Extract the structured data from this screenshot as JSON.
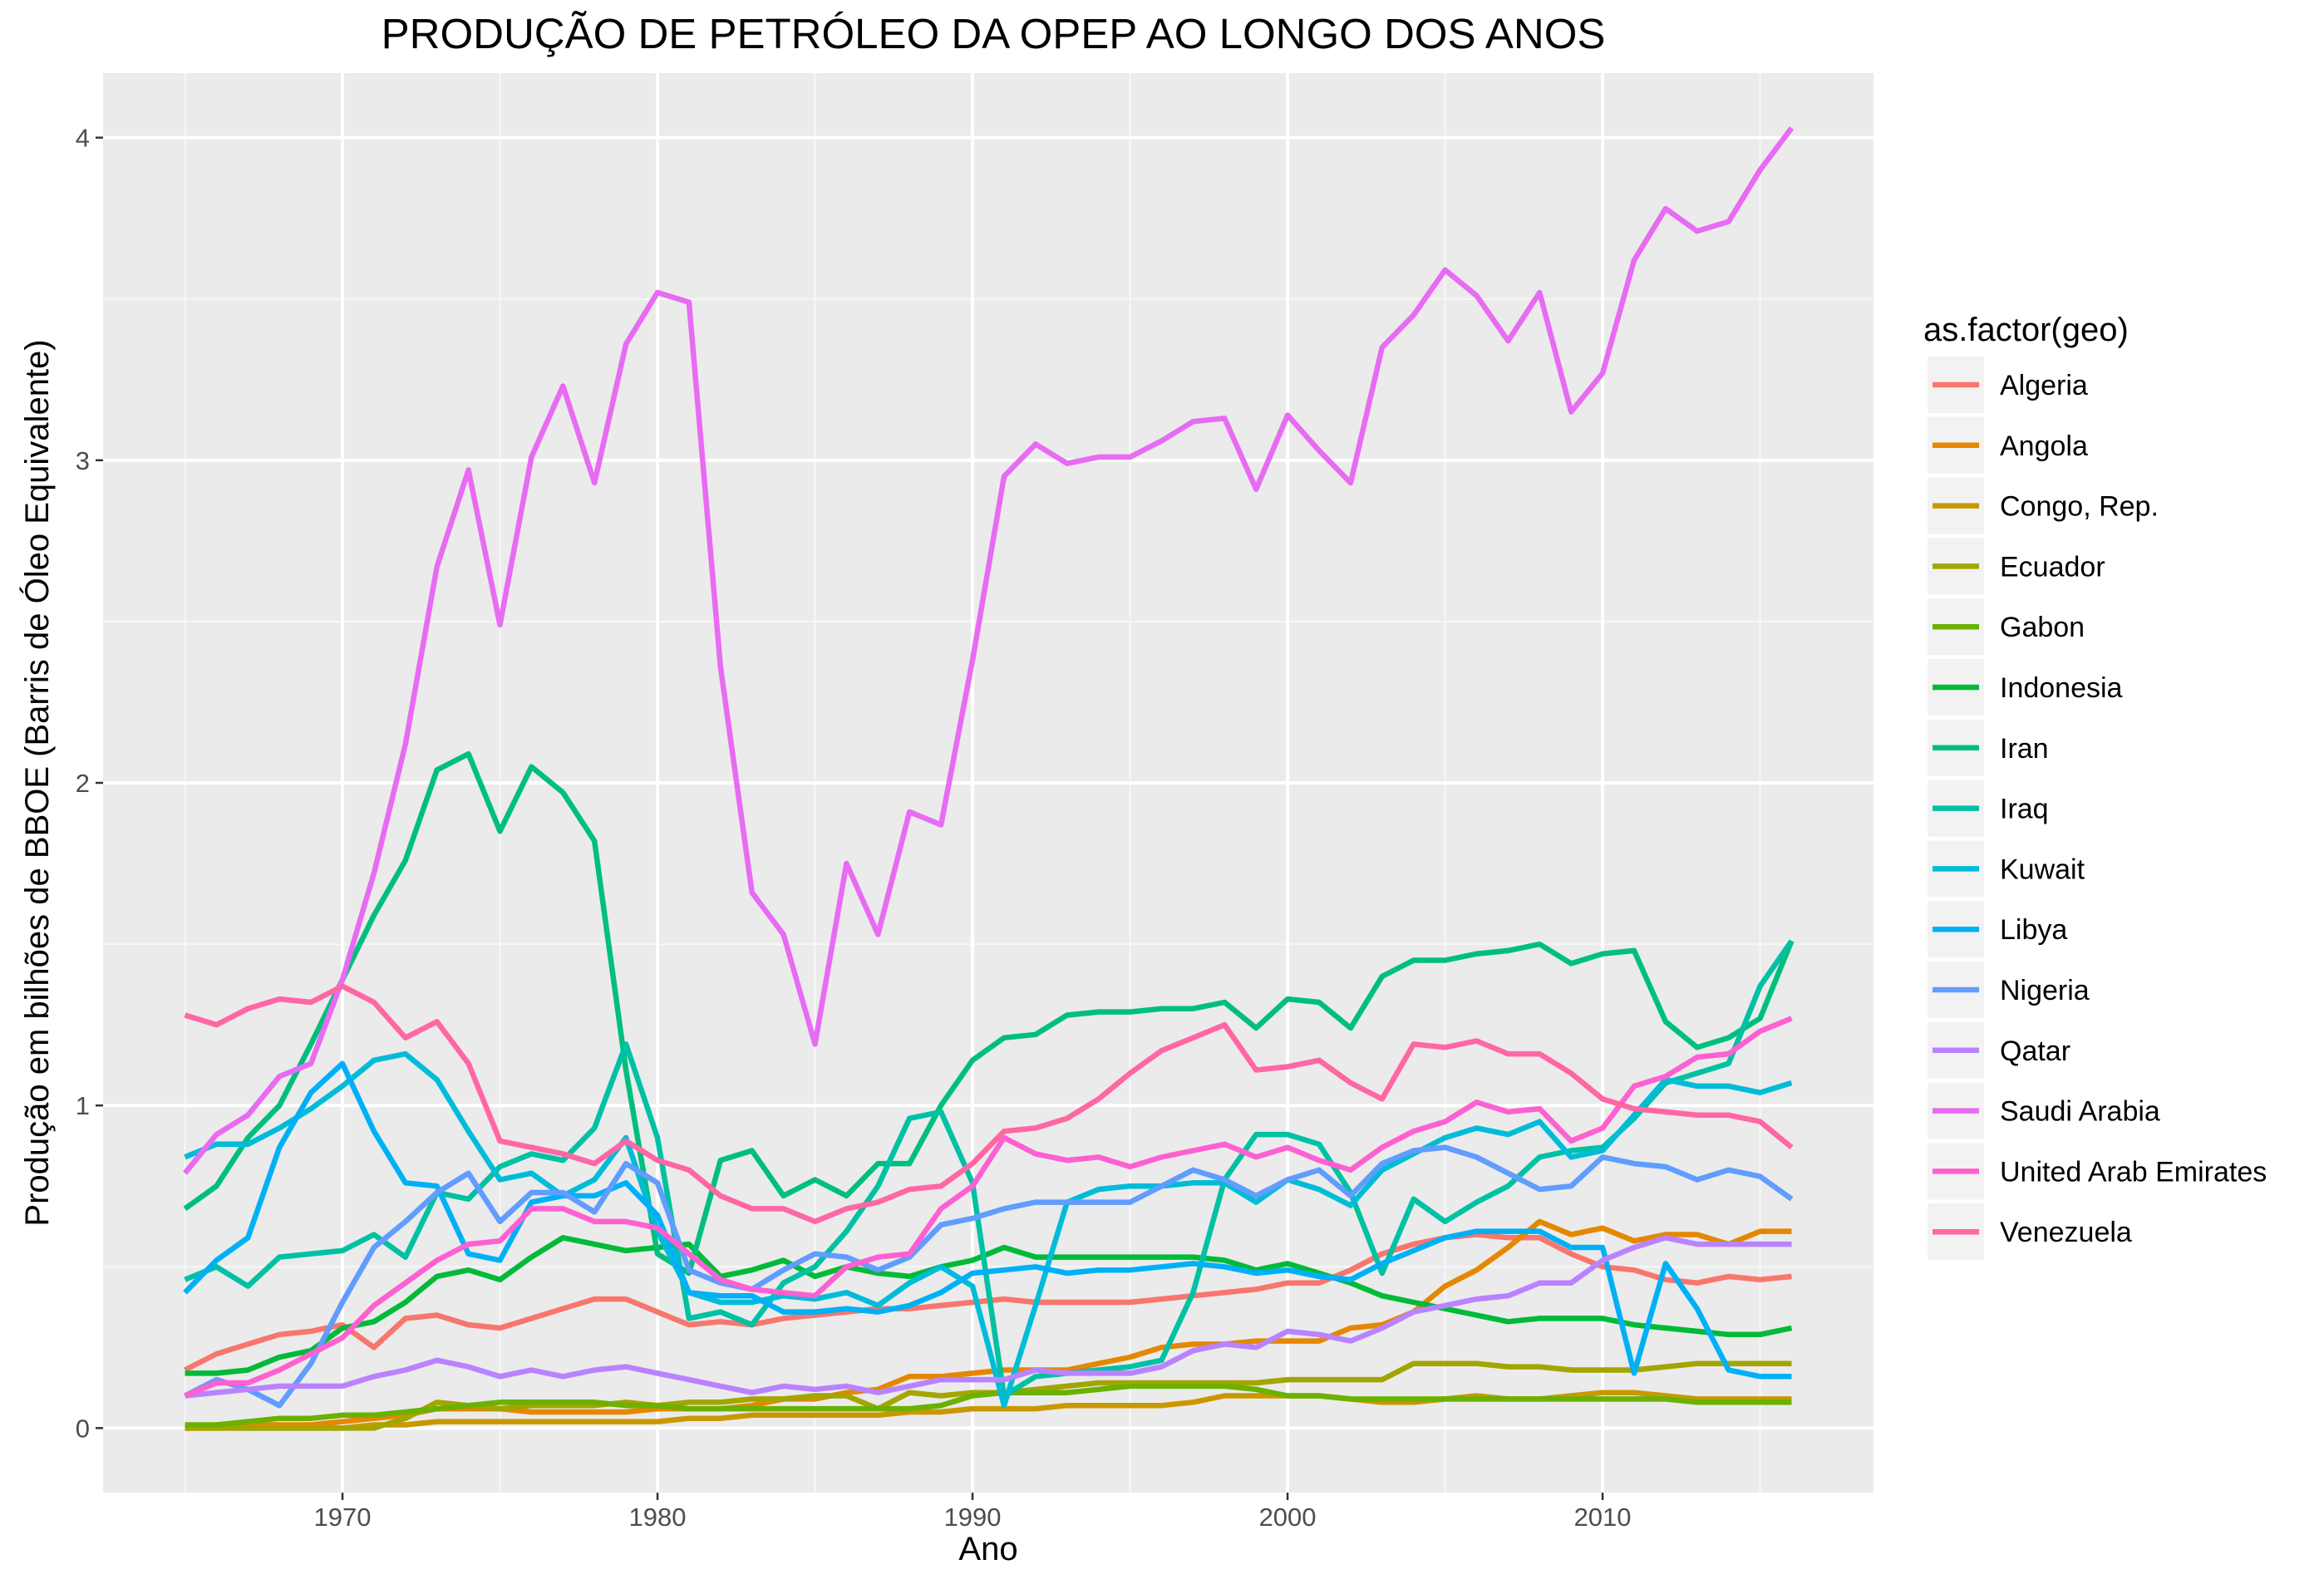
{
  "chart_data": {
    "type": "line",
    "title": "PRODUÇÃO DE PETRÓLEO DA OPEP AO LONGO DOS ANOS",
    "xlabel": "Ano",
    "ylabel": "Produção em bilhões de BBOE (Barris de Óleo Equivalente)",
    "xlim": [
      1962.4,
      2018.6
    ],
    "ylim": [
      -0.2,
      4.2
    ],
    "x_ticks": [
      1970,
      1980,
      1990,
      2000,
      2010
    ],
    "y_ticks": [
      0,
      1,
      2,
      3,
      4
    ],
    "grid": true,
    "legend": {
      "title": "as.factor(geo)",
      "position": "right"
    },
    "x": [
      1965,
      1966,
      1967,
      1968,
      1969,
      1970,
      1971,
      1972,
      1973,
      1974,
      1975,
      1976,
      1977,
      1978,
      1979,
      1980,
      1981,
      1982,
      1983,
      1984,
      1985,
      1986,
      1987,
      1988,
      1989,
      1990,
      1991,
      1992,
      1993,
      1994,
      1995,
      1996,
      1997,
      1998,
      1999,
      2000,
      2001,
      2002,
      2003,
      2004,
      2005,
      2006,
      2007,
      2008,
      2009,
      2010,
      2011,
      2012,
      2013,
      2014,
      2015,
      2016
    ],
    "series": [
      {
        "name": "Algeria",
        "color": "#F8766D",
        "values": [
          0.18,
          0.23,
          0.26,
          0.29,
          0.3,
          0.32,
          0.25,
          0.34,
          0.35,
          0.32,
          0.31,
          0.34,
          0.37,
          0.4,
          0.4,
          0.36,
          0.32,
          0.33,
          0.32,
          0.34,
          0.35,
          0.36,
          0.37,
          0.37,
          0.38,
          0.39,
          0.4,
          0.39,
          0.39,
          0.39,
          0.39,
          0.4,
          0.41,
          0.42,
          0.43,
          0.45,
          0.45,
          0.49,
          0.54,
          0.57,
          0.59,
          0.6,
          0.59,
          0.59,
          0.54,
          0.5,
          0.49,
          0.46,
          0.45,
          0.47,
          0.46,
          0.47
        ]
      },
      {
        "name": "Angola",
        "color": "#E58700",
        "values": [
          0.0,
          0.0,
          0.01,
          0.01,
          0.01,
          0.02,
          0.03,
          0.04,
          0.06,
          0.06,
          0.06,
          0.05,
          0.05,
          0.05,
          0.05,
          0.06,
          0.06,
          0.06,
          0.07,
          0.09,
          0.09,
          0.11,
          0.12,
          0.16,
          0.16,
          0.17,
          0.18,
          0.18,
          0.18,
          0.2,
          0.22,
          0.25,
          0.26,
          0.26,
          0.27,
          0.27,
          0.27,
          0.31,
          0.32,
          0.36,
          0.44,
          0.49,
          0.56,
          0.64,
          0.6,
          0.62,
          0.58,
          0.6,
          0.6,
          0.57,
          0.61,
          0.61
        ]
      },
      {
        "name": "Congo, Rep.",
        "color": "#C99800",
        "values": [
          0.0,
          0.0,
          0.0,
          0.0,
          0.0,
          0.0,
          0.01,
          0.01,
          0.02,
          0.02,
          0.02,
          0.02,
          0.02,
          0.02,
          0.02,
          0.02,
          0.03,
          0.03,
          0.04,
          0.04,
          0.04,
          0.04,
          0.04,
          0.05,
          0.05,
          0.06,
          0.06,
          0.06,
          0.07,
          0.07,
          0.07,
          0.07,
          0.08,
          0.1,
          0.1,
          0.1,
          0.1,
          0.09,
          0.08,
          0.08,
          0.09,
          0.1,
          0.09,
          0.09,
          0.1,
          0.11,
          0.11,
          0.1,
          0.09,
          0.09,
          0.09,
          0.09
        ]
      },
      {
        "name": "Ecuador",
        "color": "#A3A500",
        "values": [
          0.0,
          0.0,
          0.0,
          0.0,
          0.0,
          0.0,
          0.0,
          0.03,
          0.08,
          0.07,
          0.06,
          0.07,
          0.07,
          0.07,
          0.08,
          0.07,
          0.08,
          0.08,
          0.09,
          0.09,
          0.1,
          0.1,
          0.06,
          0.11,
          0.1,
          0.11,
          0.11,
          0.12,
          0.13,
          0.14,
          0.14,
          0.14,
          0.14,
          0.14,
          0.14,
          0.15,
          0.15,
          0.15,
          0.15,
          0.2,
          0.2,
          0.2,
          0.19,
          0.19,
          0.18,
          0.18,
          0.18,
          0.19,
          0.2,
          0.2,
          0.2,
          0.2
        ]
      },
      {
        "name": "Gabon",
        "color": "#6BB100",
        "values": [
          0.01,
          0.01,
          0.02,
          0.03,
          0.03,
          0.04,
          0.04,
          0.05,
          0.06,
          0.07,
          0.08,
          0.08,
          0.08,
          0.08,
          0.07,
          0.07,
          0.06,
          0.06,
          0.06,
          0.06,
          0.06,
          0.06,
          0.06,
          0.06,
          0.07,
          0.1,
          0.11,
          0.11,
          0.11,
          0.12,
          0.13,
          0.13,
          0.13,
          0.13,
          0.12,
          0.1,
          0.1,
          0.09,
          0.09,
          0.09,
          0.09,
          0.09,
          0.09,
          0.09,
          0.09,
          0.09,
          0.09,
          0.09,
          0.08,
          0.08,
          0.08,
          0.08
        ]
      },
      {
        "name": "Indonesia",
        "color": "#00BA38",
        "values": [
          0.17,
          0.17,
          0.18,
          0.22,
          0.24,
          0.31,
          0.33,
          0.39,
          0.47,
          0.49,
          0.46,
          0.53,
          0.59,
          0.57,
          0.55,
          0.56,
          0.57,
          0.47,
          0.49,
          0.52,
          0.47,
          0.5,
          0.48,
          0.47,
          0.5,
          0.52,
          0.56,
          0.53,
          0.53,
          0.53,
          0.53,
          0.53,
          0.53,
          0.52,
          0.49,
          0.51,
          0.48,
          0.45,
          0.41,
          0.39,
          0.37,
          0.35,
          0.33,
          0.34,
          0.34,
          0.34,
          0.32,
          0.31,
          0.3,
          0.29,
          0.29,
          0.31
        ]
      },
      {
        "name": "Iran",
        "color": "#00BF7D",
        "values": [
          0.68,
          0.75,
          0.9,
          1.0,
          1.19,
          1.39,
          1.59,
          1.76,
          2.04,
          2.09,
          1.85,
          2.05,
          1.97,
          1.82,
          1.11,
          0.54,
          0.48,
          0.83,
          0.86,
          0.72,
          0.77,
          0.72,
          0.82,
          0.82,
          1.0,
          1.14,
          1.21,
          1.22,
          1.28,
          1.29,
          1.29,
          1.3,
          1.3,
          1.32,
          1.24,
          1.33,
          1.32,
          1.24,
          1.4,
          1.45,
          1.45,
          1.47,
          1.48,
          1.5,
          1.44,
          1.47,
          1.48,
          1.26,
          1.18,
          1.21,
          1.27,
          1.51
        ]
      },
      {
        "name": "Iraq",
        "color": "#00C1A3",
        "values": [
          0.46,
          0.5,
          0.44,
          0.53,
          0.54,
          0.55,
          0.6,
          0.53,
          0.73,
          0.71,
          0.81,
          0.85,
          0.83,
          0.93,
          1.19,
          0.9,
          0.34,
          0.36,
          0.32,
          0.45,
          0.5,
          0.61,
          0.75,
          0.96,
          0.98,
          0.76,
          0.1,
          0.16,
          0.17,
          0.18,
          0.19,
          0.21,
          0.42,
          0.77,
          0.91,
          0.91,
          0.88,
          0.73,
          0.48,
          0.71,
          0.64,
          0.7,
          0.75,
          0.84,
          0.86,
          0.87,
          0.96,
          1.07,
          1.1,
          1.13,
          1.37,
          1.51
        ]
      },
      {
        "name": "Kuwait",
        "color": "#00BCD8",
        "values": [
          0.84,
          0.88,
          0.88,
          0.93,
          0.99,
          1.06,
          1.14,
          1.16,
          1.08,
          0.92,
          0.77,
          0.79,
          0.72,
          0.77,
          0.9,
          0.61,
          0.42,
          0.39,
          0.39,
          0.41,
          0.4,
          0.42,
          0.38,
          0.45,
          0.5,
          0.44,
          0.07,
          0.38,
          0.7,
          0.74,
          0.75,
          0.75,
          0.76,
          0.76,
          0.7,
          0.77,
          0.74,
          0.69,
          0.8,
          0.85,
          0.9,
          0.93,
          0.91,
          0.95,
          0.84,
          0.86,
          0.97,
          1.08,
          1.06,
          1.06,
          1.04,
          1.07
        ]
      },
      {
        "name": "Libya",
        "color": "#00B0F6",
        "values": [
          0.42,
          0.52,
          0.59,
          0.87,
          1.04,
          1.13,
          0.92,
          0.76,
          0.75,
          0.54,
          0.52,
          0.7,
          0.72,
          0.72,
          0.76,
          0.66,
          0.42,
          0.41,
          0.41,
          0.36,
          0.36,
          0.37,
          0.36,
          0.38,
          0.42,
          0.48,
          0.49,
          0.5,
          0.48,
          0.49,
          0.49,
          0.5,
          0.51,
          0.5,
          0.48,
          0.49,
          0.47,
          0.46,
          0.51,
          0.55,
          0.59,
          0.61,
          0.61,
          0.61,
          0.56,
          0.56,
          0.17,
          0.51,
          0.37,
          0.18,
          0.16,
          0.16
        ]
      },
      {
        "name": "Nigeria",
        "color": "#619CFF",
        "values": [
          0.1,
          0.15,
          0.12,
          0.07,
          0.2,
          0.39,
          0.56,
          0.64,
          0.73,
          0.79,
          0.64,
          0.73,
          0.73,
          0.67,
          0.82,
          0.76,
          0.49,
          0.45,
          0.43,
          0.49,
          0.54,
          0.53,
          0.49,
          0.53,
          0.63,
          0.65,
          0.68,
          0.7,
          0.7,
          0.7,
          0.7,
          0.75,
          0.8,
          0.77,
          0.72,
          0.77,
          0.8,
          0.72,
          0.82,
          0.86,
          0.87,
          0.84,
          0.79,
          0.74,
          0.75,
          0.84,
          0.82,
          0.81,
          0.77,
          0.8,
          0.78,
          0.71
        ]
      },
      {
        "name": "Qatar",
        "color": "#B983FF",
        "values": [
          0.1,
          0.11,
          0.12,
          0.13,
          0.13,
          0.13,
          0.16,
          0.18,
          0.21,
          0.19,
          0.16,
          0.18,
          0.16,
          0.18,
          0.19,
          0.17,
          0.15,
          0.13,
          0.11,
          0.13,
          0.12,
          0.13,
          0.11,
          0.13,
          0.15,
          0.15,
          0.15,
          0.18,
          0.17,
          0.17,
          0.17,
          0.19,
          0.24,
          0.26,
          0.25,
          0.3,
          0.29,
          0.27,
          0.31,
          0.36,
          0.38,
          0.4,
          0.41,
          0.45,
          0.45,
          0.52,
          0.56,
          0.59,
          0.57,
          0.57,
          0.57,
          0.57
        ]
      },
      {
        "name": "Saudi Arabia",
        "color": "#E76BF3",
        "values": [
          0.79,
          0.91,
          0.97,
          1.09,
          1.13,
          1.39,
          1.72,
          2.12,
          2.67,
          2.97,
          2.49,
          3.01,
          3.23,
          2.93,
          3.36,
          3.52,
          3.49,
          2.36,
          1.66,
          1.53,
          1.19,
          1.75,
          1.53,
          1.91,
          1.87,
          2.38,
          2.95,
          3.05,
          2.99,
          3.01,
          3.01,
          3.06,
          3.12,
          3.13,
          2.91,
          3.14,
          3.03,
          2.93,
          3.35,
          3.45,
          3.59,
          3.51,
          3.37,
          3.52,
          3.15,
          3.27,
          3.62,
          3.78,
          3.71,
          3.74,
          3.9,
          4.03
        ]
      },
      {
        "name": "United Arab Emirates",
        "color": "#FD61D1",
        "values": [
          0.1,
          0.14,
          0.14,
          0.18,
          0.23,
          0.28,
          0.38,
          0.45,
          0.52,
          0.57,
          0.58,
          0.68,
          0.68,
          0.64,
          0.64,
          0.62,
          0.54,
          0.46,
          0.43,
          0.42,
          0.41,
          0.5,
          0.53,
          0.54,
          0.68,
          0.75,
          0.9,
          0.85,
          0.83,
          0.84,
          0.81,
          0.84,
          0.86,
          0.88,
          0.84,
          0.87,
          0.83,
          0.8,
          0.87,
          0.92,
          0.95,
          1.01,
          0.98,
          0.99,
          0.89,
          0.93,
          1.06,
          1.09,
          1.15,
          1.16,
          1.23,
          1.27
        ]
      },
      {
        "name": "Venezuela",
        "color": "#FF67A4",
        "values": [
          1.28,
          1.25,
          1.3,
          1.33,
          1.32,
          1.37,
          1.32,
          1.21,
          1.26,
          1.13,
          0.89,
          0.87,
          0.85,
          0.82,
          0.89,
          0.83,
          0.8,
          0.72,
          0.68,
          0.68,
          0.64,
          0.68,
          0.7,
          0.74,
          0.75,
          0.82,
          0.92,
          0.93,
          0.96,
          1.02,
          1.1,
          1.17,
          1.21,
          1.25,
          1.11,
          1.12,
          1.14,
          1.07,
          1.02,
          1.19,
          1.18,
          1.2,
          1.16,
          1.16,
          1.1,
          1.02,
          0.99,
          0.98,
          0.97,
          0.97,
          0.95,
          0.87
        ]
      }
    ]
  }
}
